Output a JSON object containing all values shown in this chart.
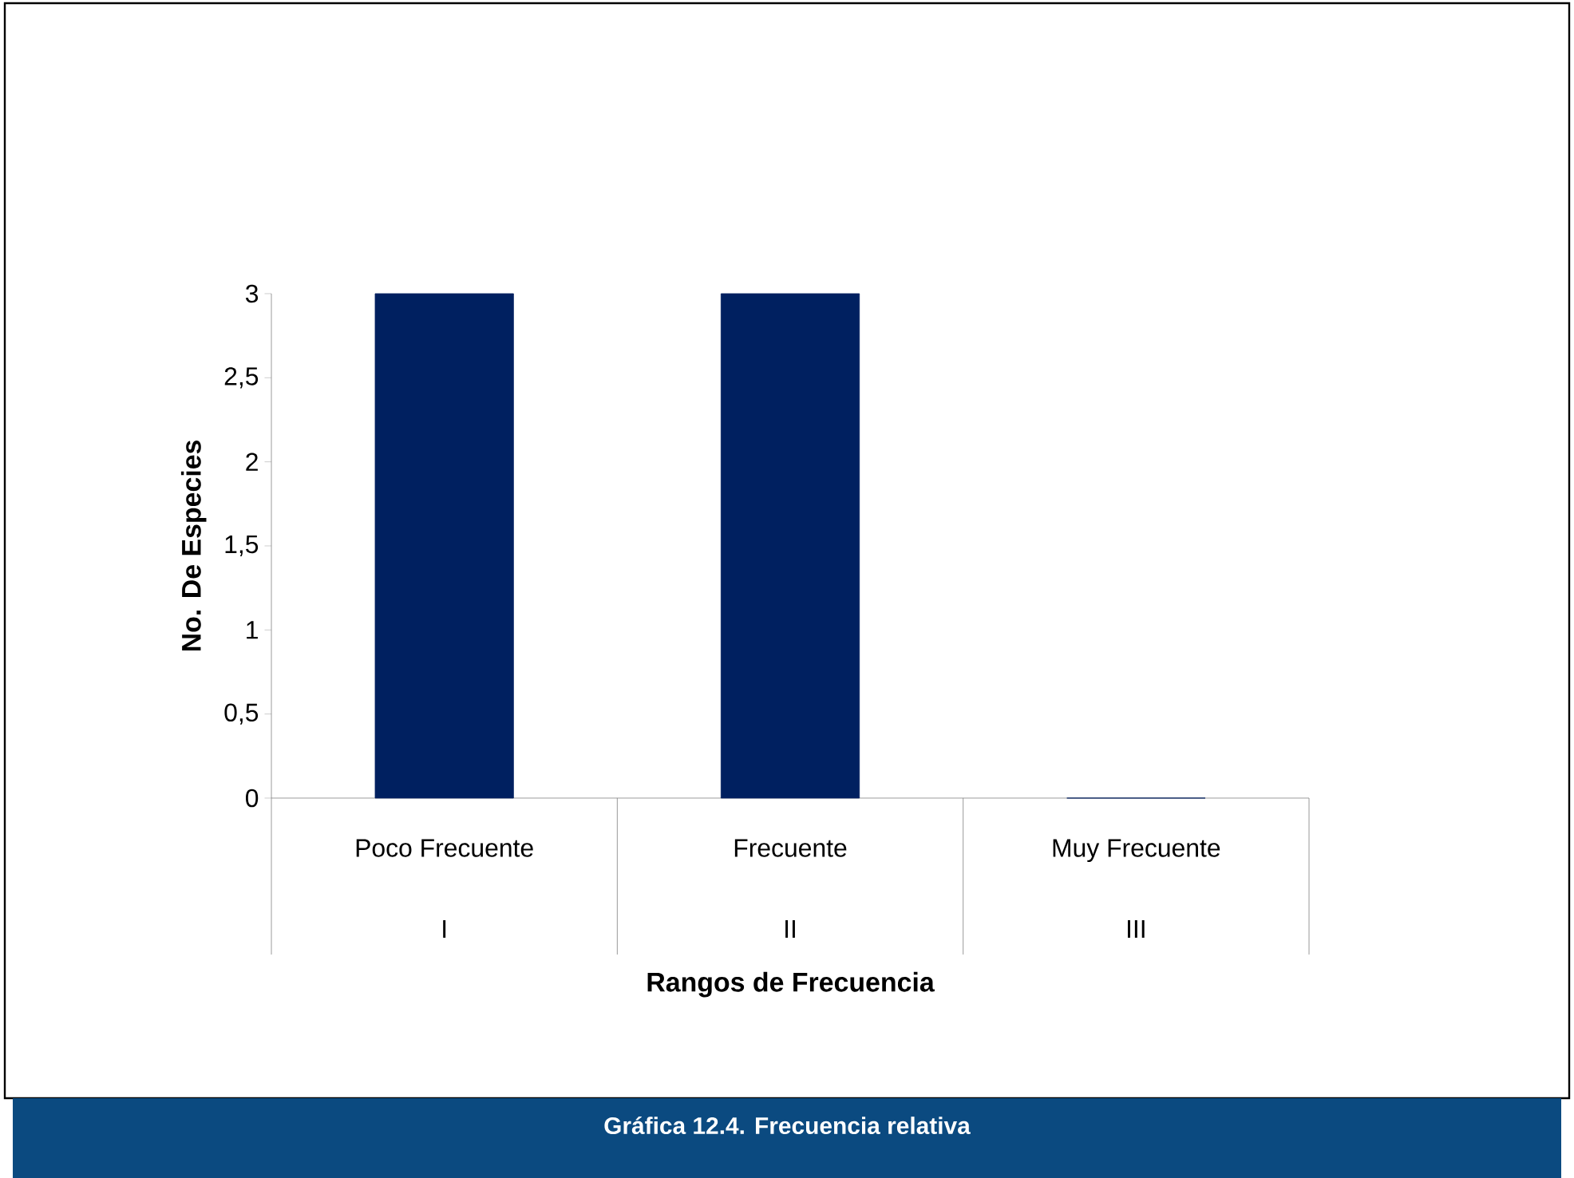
{
  "chart_data": {
    "type": "bar",
    "title": "Gráfica 12.4. Frecuencia relativa",
    "xlabel": "Rangos de Frecuencia",
    "ylabel": "No. De Especies",
    "categories": [
      "Poco Frecuente",
      "Frecuente",
      "Muy Frecuente"
    ],
    "annotations": [
      "I",
      "II",
      "III"
    ],
    "values": [
      3,
      3,
      0
    ],
    "color": "#002060",
    "ylim": [
      0,
      3
    ],
    "yticks": [
      0,
      {
        "value": 0.5,
        "label": "0,5"
      },
      1,
      {
        "value": 1.5,
        "label": "1,5"
      },
      2,
      {
        "value": 2.5,
        "label": "2,5"
      },
      3
    ],
    "grid": false
  }
}
